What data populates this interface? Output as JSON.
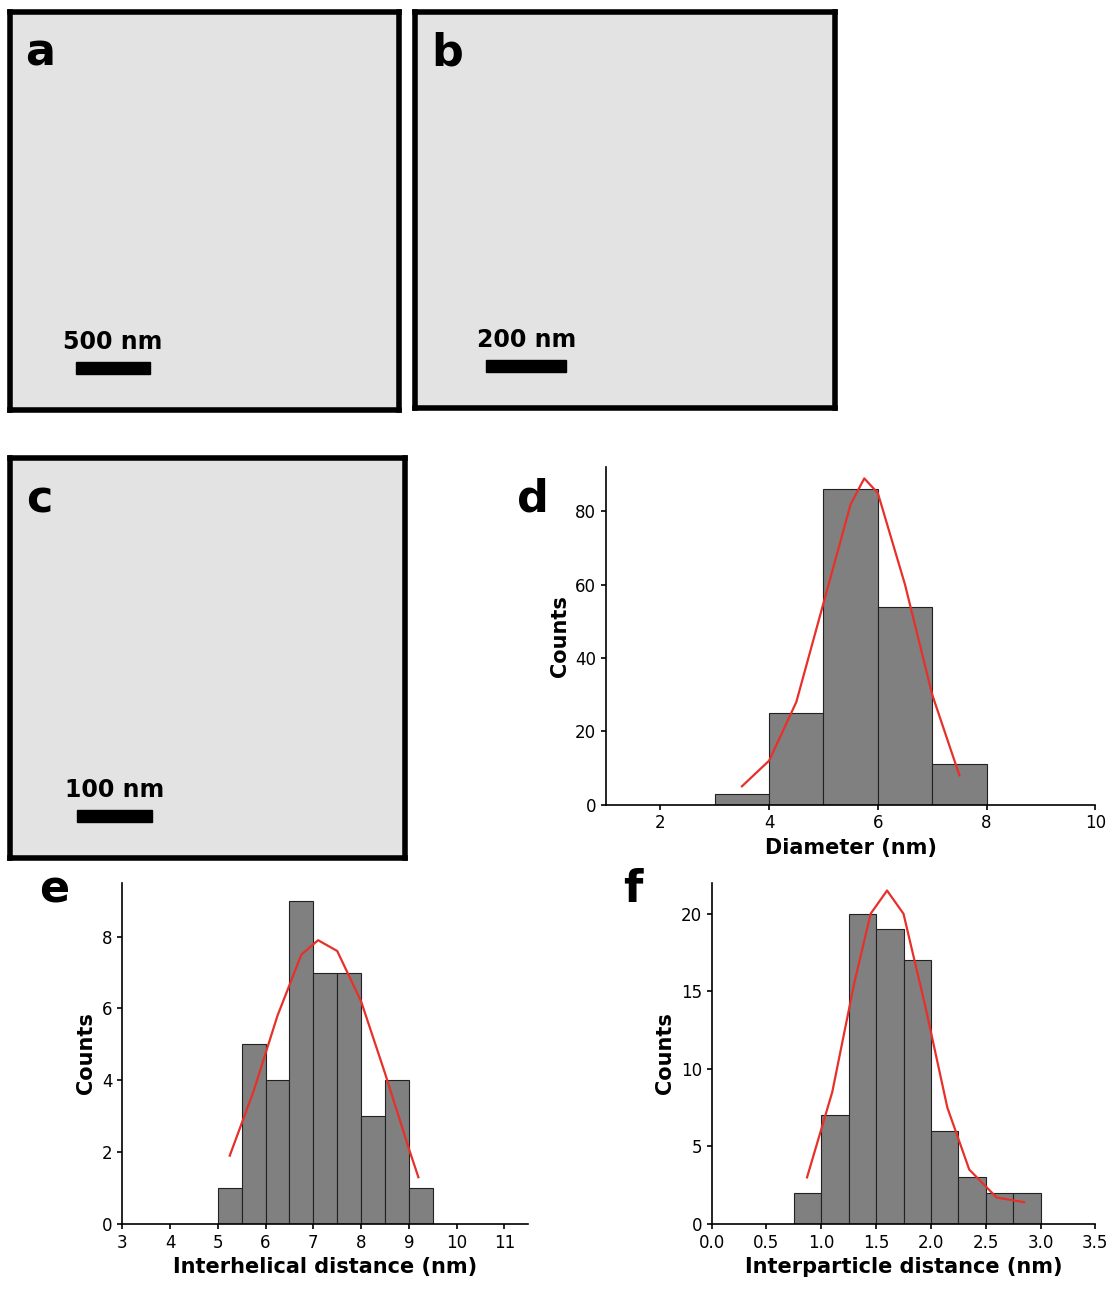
{
  "chart_data": [
    {
      "type": "image",
      "title": "a",
      "annotations": [
        "500 nm"
      ]
    },
    {
      "type": "image",
      "title": "b",
      "annotations": [
        "200 nm"
      ]
    },
    {
      "type": "image",
      "title": "c",
      "annotations": [
        "100 nm"
      ]
    },
    {
      "type": "histogram",
      "title": "d",
      "x_label": "Diameter (nm)",
      "y_label": "Counts",
      "bins": [
        3,
        4,
        5,
        6,
        7,
        8
      ],
      "counts": [
        3,
        25,
        86,
        54,
        11
      ],
      "color": "#808080",
      "fit": {
        "x": [
          3.5,
          4,
          4.5,
          5,
          5.5,
          5.75,
          6,
          6.5,
          7,
          7.5
        ],
        "values": [
          5,
          12,
          28,
          55,
          82,
          89,
          85,
          60,
          30,
          8
        ],
        "color": "#e8302a"
      },
      "xlim": [
        1,
        10
      ],
      "xticks": [
        2,
        4,
        6,
        8,
        10
      ],
      "ylim": [
        0,
        92
      ],
      "yticks": [
        0,
        20,
        40,
        60,
        80
      ]
    },
    {
      "type": "histogram",
      "title": "e",
      "x_label": "Interhelical distance (nm)",
      "y_label": "Counts",
      "bins": [
        5,
        5.5,
        6,
        6.5,
        7,
        7.5,
        8,
        8.5,
        9,
        9.5
      ],
      "counts": [
        1,
        5,
        4,
        9,
        7,
        7,
        3,
        4,
        1
      ],
      "color": "#808080",
      "fit": {
        "x": [
          5.25,
          5.75,
          6.25,
          6.75,
          7.1,
          7.5,
          8,
          8.5,
          9,
          9.2
        ],
        "values": [
          1.9,
          3.7,
          5.8,
          7.5,
          7.9,
          7.6,
          6.2,
          4.2,
          2.1,
          1.3
        ],
        "color": "#e8302a"
      },
      "xlim": [
        3,
        11.5
      ],
      "xticks": [
        3,
        4,
        5,
        6,
        7,
        8,
        9,
        10,
        11
      ],
      "ylim": [
        0,
        9.5
      ],
      "yticks": [
        0,
        2,
        4,
        6,
        8
      ]
    },
    {
      "type": "histogram",
      "title": "f",
      "x_label": "Interparticle distance (nm)",
      "y_label": "Counts",
      "bins": [
        0.75,
        1.0,
        1.25,
        1.5,
        1.75,
        2.0,
        2.25,
        2.5,
        2.75,
        3.0
      ],
      "counts": [
        2,
        7,
        20,
        19,
        17,
        6,
        3,
        2,
        2
      ],
      "color": "#808080",
      "fit": {
        "x": [
          0.87,
          1.1,
          1.3,
          1.45,
          1.6,
          1.75,
          1.95,
          2.15,
          2.35,
          2.6,
          2.85
        ],
        "values": [
          3,
          8.5,
          15.5,
          20,
          21.5,
          20,
          14,
          7.5,
          3.5,
          1.7,
          1.4
        ],
        "color": "#e8302a"
      },
      "xlim": [
        0,
        3.5
      ],
      "xticks": [
        {
          "value": 0,
          "label": "0.0"
        },
        {
          "value": 0.5,
          "label": "0.5"
        },
        {
          "value": 1,
          "label": "1.0"
        },
        {
          "value": 1.5,
          "label": "1.5"
        },
        {
          "value": 2,
          "label": "2.0"
        },
        {
          "value": 2.5,
          "label": "2.5"
        },
        {
          "value": 3,
          "label": "3.0"
        },
        {
          "value": 3.5,
          "label": "3.5"
        }
      ],
      "ylim": [
        0,
        22
      ],
      "yticks": [
        0,
        5,
        10,
        15,
        20
      ]
    }
  ]
}
